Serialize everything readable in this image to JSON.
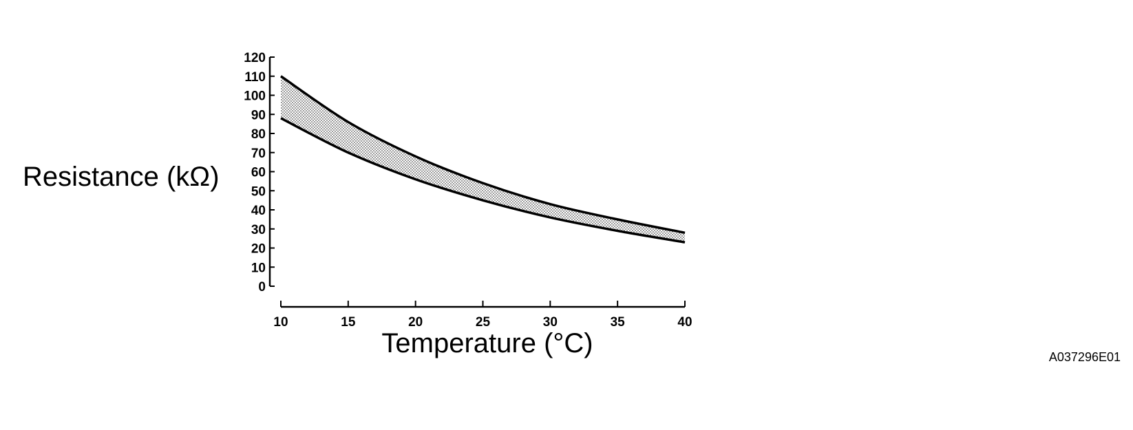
{
  "chart_data": {
    "type": "area",
    "title": "",
    "xlabel": "Temperature (°C)",
    "ylabel": "Resistance (kΩ)",
    "xlim": [
      10,
      40
    ],
    "ylim": [
      0,
      120
    ],
    "x_ticks": [
      10,
      15,
      20,
      25,
      30,
      35,
      40
    ],
    "y_ticks": [
      0,
      10,
      20,
      30,
      40,
      50,
      60,
      70,
      80,
      90,
      100,
      110,
      120
    ],
    "grid": false,
    "band_fill": "shaded",
    "x": [
      10,
      15,
      20,
      25,
      30,
      35,
      40
    ],
    "series": [
      {
        "values": [
          110,
          86,
          68,
          54,
          43,
          35,
          28
        ]
      },
      {
        "values": [
          88,
          70,
          56,
          45,
          36,
          29,
          23
        ]
      }
    ]
  },
  "reference_code": "A037296E01"
}
